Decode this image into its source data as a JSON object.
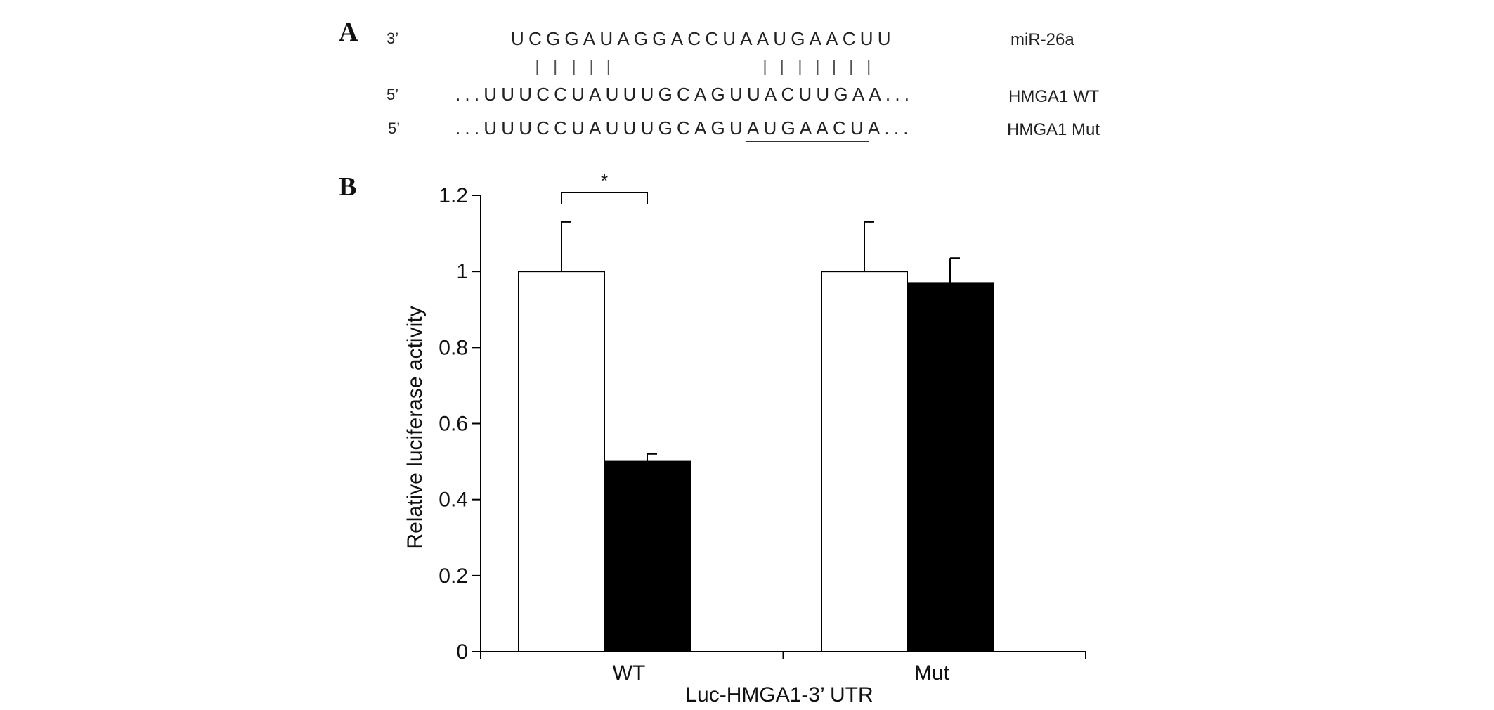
{
  "panel_a": {
    "label": "A",
    "rows": [
      {
        "end": "3’",
        "sequence": "UCGGAUAGGACCUAAUGAACUU",
        "name": "miR-26a",
        "underline": null
      },
      {
        "end": "5’",
        "sequence": "...UUUCCUAUUUGCAGUUACUUGAA...",
        "name": "HMGA1 WT",
        "underline": null
      },
      {
        "end": "5’",
        "sequence": "...UUUCCUAUUUGCAGUAUGAACUA...",
        "name": "HMGA1 Mut",
        "underline": "AUGAACU"
      }
    ],
    "pairing_positions": [
      1,
      2,
      3,
      4,
      5,
      14,
      15,
      16,
      17,
      18,
      19,
      20
    ]
  },
  "panel_b": {
    "label": "B"
  },
  "chart_data": {
    "type": "bar",
    "categories": [
      "WT",
      "Mut"
    ],
    "series": [
      {
        "values": [
          1.0,
          1.0
        ],
        "errors": [
          0.13,
          0.13
        ],
        "color": "#ffffff"
      },
      {
        "values": [
          0.5,
          0.97
        ],
        "errors": [
          0.02,
          0.065
        ],
        "color": "#000000"
      }
    ],
    "xlabel": "Luc-HMGA1-3’ UTR",
    "ylabel": "Relative luciferase activity",
    "ylim": [
      0,
      1.2
    ],
    "yticks": [
      0,
      0.2,
      0.4,
      0.6,
      0.8,
      1,
      1.2
    ],
    "ytick_labels": [
      "0",
      "0.2",
      "0.4",
      "0.6",
      "0.8",
      "1",
      "1.2"
    ],
    "grid": false,
    "annotations": [
      {
        "type": "significance",
        "text": "*",
        "category": "WT",
        "between_series": [
          0,
          1
        ]
      }
    ]
  }
}
